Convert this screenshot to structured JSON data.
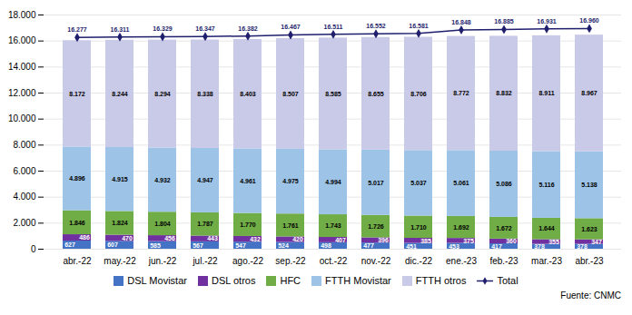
{
  "chart_data": {
    "type": "bar",
    "stacked": true,
    "grid": true,
    "legend": "bottom",
    "data_labels": true,
    "annotations": [
      "Fuente: CNMC"
    ],
    "categories": [
      "abr.-22",
      "may.-22",
      "jun.-22",
      "jul.-22",
      "ago.-22",
      "sep.-22",
      "oct.-22",
      "nov.-22",
      "dic.-22",
      "ene.-23",
      "feb.-23",
      "mar.-23",
      "abr.-23"
    ],
    "ylim": [
      0,
      18000
    ],
    "yticks": [
      0,
      {
        "value": 2000,
        "label": "2.000"
      },
      {
        "value": 4000,
        "label": "4.000"
      },
      {
        "value": 6000,
        "label": "6.000"
      },
      {
        "value": 8000,
        "label": "8.000"
      },
      {
        "value": 10000,
        "label": "10.000"
      },
      {
        "value": 12000,
        "label": "12.000"
      },
      {
        "value": 14000,
        "label": "14.000"
      },
      {
        "value": 16000,
        "label": "16.000"
      },
      {
        "value": 18000,
        "label": "18.000"
      }
    ],
    "series": [
      {
        "name": "DSL Movistar",
        "color": "#4472C4",
        "values": [
          627,
          607,
          585,
          567,
          547,
          524,
          498,
          477,
          451,
          453,
          417,
          378,
          378
        ]
      },
      {
        "name": "DSL otros",
        "color": "#7030A0",
        "values": [
          486,
          470,
          456,
          443,
          432,
          420,
          407,
          396,
          385,
          375,
          360,
          355,
          347
        ]
      },
      {
        "name": "HFC",
        "color": "#70AD47",
        "values": [
          1846,
          1824,
          1804,
          1787,
          1770,
          1761,
          1743,
          1726,
          1710,
          1692,
          1672,
          1644,
          1623
        ],
        "value_labels": [
          "1.846",
          "1.824",
          "1.804",
          "1.787",
          "1.770",
          "1.761",
          "1.743",
          "1.726",
          "1.710",
          "1.692",
          "1.672",
          "1.644",
          "1.623"
        ]
      },
      {
        "name": "FTTH Movistar",
        "color": "#9DC3E6",
        "values": [
          4896,
          4915,
          4932,
          4947,
          4961,
          4975,
          4994,
          5017,
          5037,
          5061,
          5086,
          5116,
          5138
        ],
        "value_labels": [
          "4.896",
          "4.915",
          "4.932",
          "4.947",
          "4.961",
          "4.975",
          "4.994",
          "5.017",
          "5.037",
          "5.061",
          "5.086",
          "5.116",
          "5.138"
        ]
      },
      {
        "name": "FTTH otros",
        "color": "#C9C9E8",
        "values": [
          8172,
          8244,
          8294,
          8338,
          8403,
          8507,
          8585,
          8655,
          8706,
          8772,
          8832,
          8911,
          8967
        ],
        "value_labels": [
          "8.172",
          "8.244",
          "8.294",
          "8.338",
          "8.403",
          "8.507",
          "8.585",
          "8.655",
          "8.706",
          "8.772",
          "8.832",
          "8.911",
          "8.967"
        ]
      },
      {
        "name": "Total",
        "type": "line",
        "color": "#1F1F6E",
        "marker": "diamond",
        "values": [
          16277,
          16311,
          16329,
          16347,
          16382,
          16467,
          16511,
          16552,
          16581,
          16848,
          16885,
          16931,
          16960
        ],
        "value_labels": [
          "16.277",
          "16.311",
          "16.329",
          "16.347",
          "16.382",
          "16.467",
          "16.511",
          "16.552",
          "16.581",
          "16.848",
          "16.885",
          "16.931",
          "16.960"
        ]
      }
    ]
  }
}
